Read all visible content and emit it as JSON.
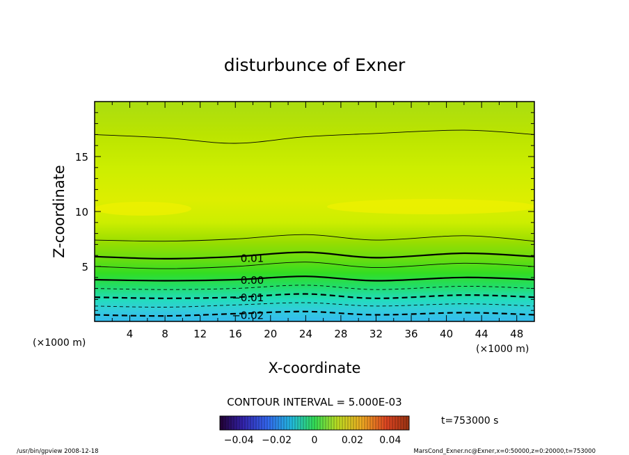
{
  "chart_data": {
    "type": "contour",
    "title": "disturbunce of Exner",
    "xlabel": "X-coordinate",
    "ylabel": "Z-coordinate",
    "x_unit": "(×1000 m)",
    "z_unit": "(×1000 m)",
    "xlim": [
      0,
      50
    ],
    "ylim": [
      0,
      20
    ],
    "x_ticks": [
      4,
      8,
      12,
      16,
      20,
      24,
      28,
      32,
      36,
      40,
      44,
      48
    ],
    "y_ticks": [
      5,
      10,
      15
    ],
    "contour_interval_label": "CONTOUR INTERVAL = 5.000E-03",
    "contour_labels": [
      {
        "text": "0.01",
        "value": 0.01,
        "x": 17.5,
        "z": 5.8
      },
      {
        "text": "0.00",
        "value": 0.0,
        "x": 17.5,
        "z": 3.8
      },
      {
        "text": "−0.01",
        "value": -0.01,
        "x": 17.5,
        "z": 2.2
      },
      {
        "text": "−0.02",
        "value": -0.02,
        "x": 17.5,
        "z": 0.6
      }
    ],
    "contour_levels": [
      {
        "value": 0.02,
        "z": [
          17.0,
          16.7,
          16.2,
          16.8,
          17.1,
          17.4,
          17.0
        ],
        "style": "thin"
      },
      {
        "value": 0.015,
        "z": [
          7.4,
          7.3,
          7.5,
          7.9,
          7.4,
          7.8,
          7.3
        ],
        "style": "thin"
      },
      {
        "value": 0.01,
        "z": [
          5.9,
          5.7,
          5.9,
          6.3,
          5.8,
          6.2,
          5.9
        ],
        "style": "thick"
      },
      {
        "value": 0.005,
        "z": [
          5.0,
          4.8,
          5.0,
          5.4,
          4.9,
          5.3,
          5.0
        ],
        "style": "thin"
      },
      {
        "value": 0.0,
        "z": [
          3.8,
          3.7,
          3.8,
          4.1,
          3.7,
          4.0,
          3.8
        ],
        "style": "thick"
      },
      {
        "value": -0.005,
        "z": [
          3.0,
          2.9,
          3.0,
          3.3,
          2.9,
          3.2,
          3.0
        ],
        "style": "dashed"
      },
      {
        "value": -0.01,
        "z": [
          2.2,
          2.1,
          2.2,
          2.5,
          2.1,
          2.4,
          2.2
        ],
        "style": "dashed-thick"
      },
      {
        "value": -0.015,
        "z": [
          1.4,
          1.3,
          1.5,
          1.7,
          1.4,
          1.6,
          1.4
        ],
        "style": "dashed"
      },
      {
        "value": -0.02,
        "z": [
          0.6,
          0.5,
          0.7,
          0.9,
          0.6,
          0.8,
          0.6
        ],
        "style": "dashed-thick"
      }
    ],
    "contour_x": [
      0,
      8,
      16,
      24,
      32,
      42,
      50
    ],
    "colorbar": {
      "min": -0.05,
      "max": 0.05,
      "tick_labels": [
        "−0.04",
        "−0.02",
        "0",
        "0.02",
        "0.04"
      ],
      "tick_values": [
        -0.04,
        -0.02,
        0,
        0.02,
        0.04
      ]
    },
    "time_label": "t=753000 s"
  },
  "footer": {
    "left": "/usr/bin/gpview   2008-12-18",
    "right": "MarsCond_Exner.nc@Exner,x=0:50000,z=0:20000,t=753000"
  }
}
